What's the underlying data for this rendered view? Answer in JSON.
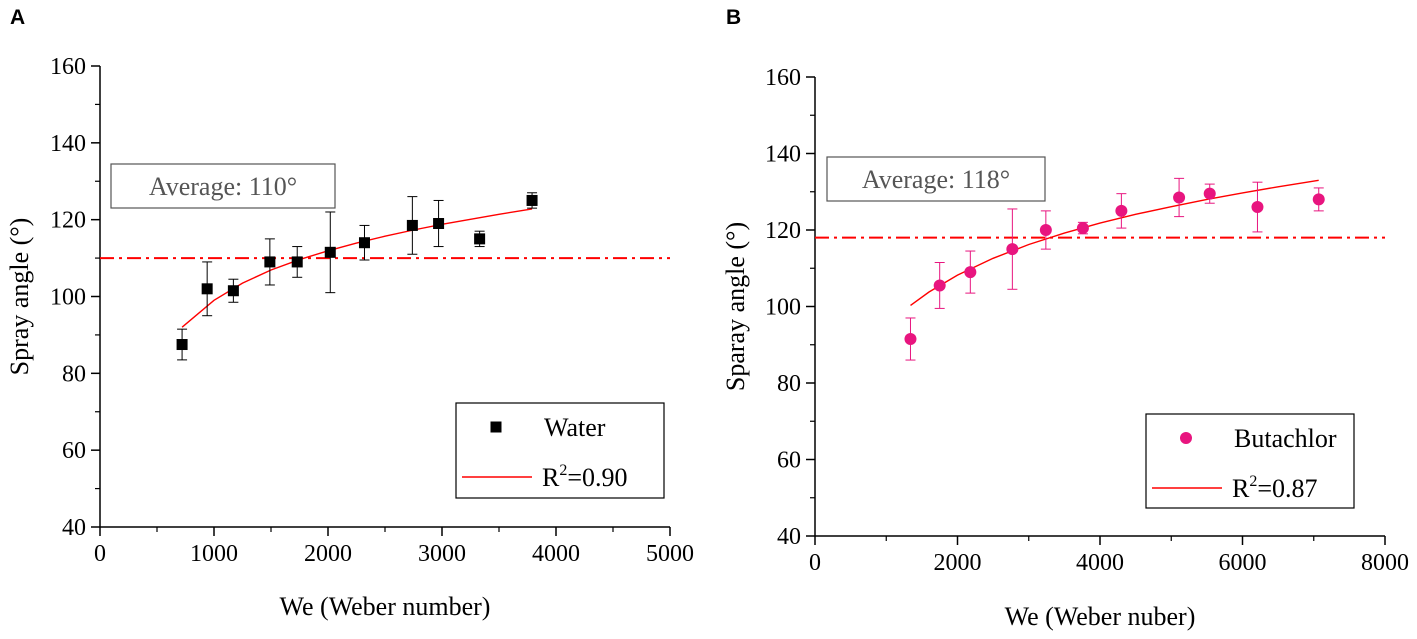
{
  "chart_data": [
    {
      "panel_label": "A",
      "type": "scatter",
      "xlabel": "We (Weber number)",
      "ylabel": "Spray angle (°)",
      "xlim": [
        0,
        5000
      ],
      "ylim": [
        40,
        160
      ],
      "xticks": [
        0,
        1000,
        2000,
        3000,
        4000,
        5000
      ],
      "yticks": [
        40,
        60,
        80,
        100,
        120,
        140,
        160
      ],
      "grid": false,
      "series": [
        {
          "name": "Water",
          "marker": "square",
          "color": "#000000",
          "points": [
            {
              "x": 720,
              "y": 87.5,
              "err": 4
            },
            {
              "x": 940,
              "y": 102,
              "err": 7
            },
            {
              "x": 1170,
              "y": 101.5,
              "err": 3
            },
            {
              "x": 1490,
              "y": 109,
              "err": 6
            },
            {
              "x": 1730,
              "y": 109,
              "err": 4
            },
            {
              "x": 2020,
              "y": 111.5,
              "err": 10.5
            },
            {
              "x": 2320,
              "y": 114,
              "err": 4.5
            },
            {
              "x": 2740,
              "y": 118.5,
              "err": 7.5
            },
            {
              "x": 2970,
              "y": 119,
              "err": 6
            },
            {
              "x": 3330,
              "y": 115,
              "err": 2
            },
            {
              "x": 3790,
              "y": 125,
              "err": 2
            }
          ]
        }
      ],
      "fit": {
        "label_prefix": "R",
        "label_sup": "2",
        "label_suffix": "=0.90",
        "color": "#ff0000",
        "x": [
          720,
          1000,
          1250,
          1500,
          1750,
          2000,
          2250,
          2500,
          2750,
          3000,
          3250,
          3500,
          3790
        ],
        "y": [
          92,
          99,
          103.5,
          106.9,
          109.6,
          111.9,
          113.9,
          115.7,
          117.3,
          118.8,
          120.1,
          121.4,
          122.8
        ]
      },
      "average": {
        "label": "Average: 110°",
        "value": 110,
        "color": "#ff0000"
      },
      "legend": {
        "position": "bottom-right"
      }
    },
    {
      "panel_label": "B",
      "type": "scatter",
      "xlabel": "We (Weber nuber)",
      "ylabel": "Sparay angle (°)",
      "xlim": [
        0,
        8000
      ],
      "ylim": [
        40,
        160
      ],
      "xticks": [
        0,
        2000,
        4000,
        6000,
        8000
      ],
      "yticks": [
        40,
        60,
        80,
        100,
        120,
        140,
        160
      ],
      "grid": false,
      "series": [
        {
          "name": "Butachlor",
          "marker": "circle",
          "color": "#e8157f",
          "points": [
            {
              "x": 1340,
              "y": 91.5,
              "err": 5.5
            },
            {
              "x": 1750,
              "y": 105.5,
              "err": 6
            },
            {
              "x": 2180,
              "y": 109,
              "err": 5.5
            },
            {
              "x": 2770,
              "y": 115,
              "err": 10.5
            },
            {
              "x": 3240,
              "y": 120,
              "err": 5
            },
            {
              "x": 3760,
              "y": 120.5,
              "err": 1.5
            },
            {
              "x": 4300,
              "y": 125,
              "err": 4.5
            },
            {
              "x": 5110,
              "y": 128.5,
              "err": 5
            },
            {
              "x": 5540,
              "y": 129.5,
              "err": 2.5
            },
            {
              "x": 6210,
              "y": 126,
              "err": 6.5
            },
            {
              "x": 7070,
              "y": 128,
              "err": 3
            }
          ]
        }
      ],
      "fit": {
        "label_prefix": "R",
        "label_sup": "2",
        "label_suffix": "=0.87",
        "color": "#ff0000",
        "x": [
          1340,
          1600,
          2000,
          2500,
          3000,
          3500,
          4000,
          4500,
          5000,
          5500,
          6000,
          6500,
          7070
        ],
        "y": [
          100.3,
          103.8,
          108.2,
          112.6,
          116.2,
          119.2,
          121.8,
          124.1,
          126.1,
          128,
          129.7,
          131.3,
          133
        ]
      },
      "average": {
        "label": "Average: 118°",
        "value": 118,
        "color": "#ff0000"
      },
      "legend": {
        "position": "bottom-right"
      }
    }
  ]
}
